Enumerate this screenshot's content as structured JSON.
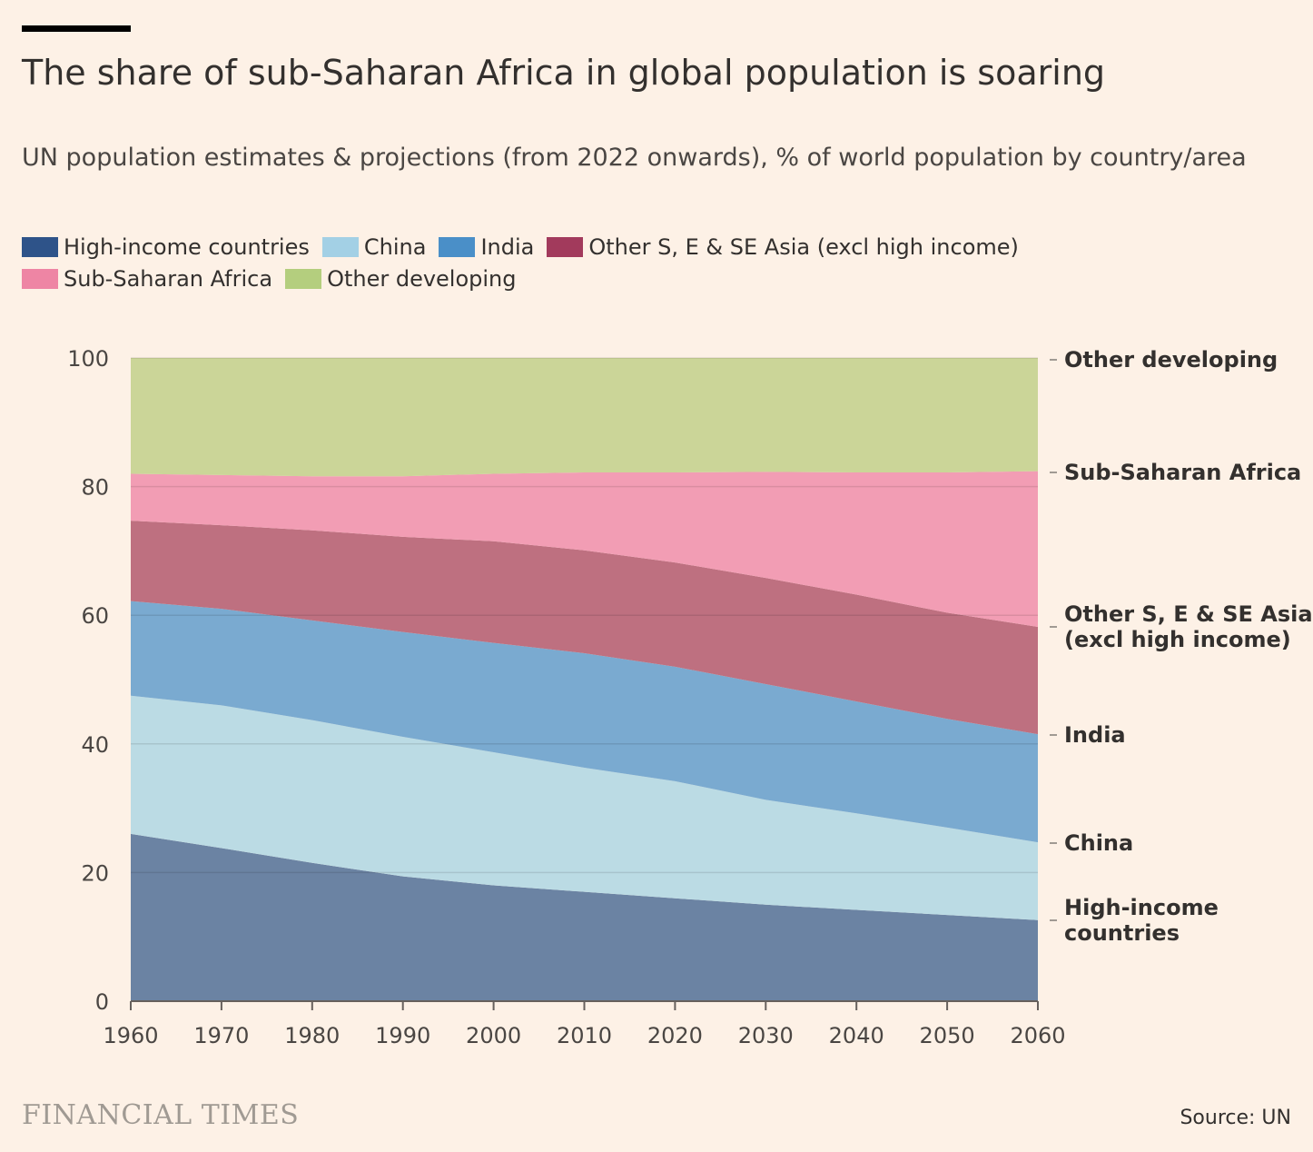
{
  "header": {
    "title": "The share of sub-Saharan Africa in global population is soaring",
    "subtitle": "UN population estimates & projections (from 2022 onwards), % of world population by country/area"
  },
  "legend": {
    "items": [
      {
        "label": "High-income countries",
        "color": "#2e5389"
      },
      {
        "label": "China",
        "color": "#a3d0e5"
      },
      {
        "label": "India",
        "color": "#4a8fc8"
      },
      {
        "label": "Other S, E & SE Asia (excl high income)",
        "color": "#a23a5c"
      },
      {
        "label": "Sub-Saharan Africa",
        "color": "#ee85a4"
      },
      {
        "label": "Other developing",
        "color": "#b4ce7e"
      }
    ]
  },
  "end_labels": [
    {
      "lines": [
        "Other developing"
      ]
    },
    {
      "lines": [
        "Sub-Saharan Africa"
      ]
    },
    {
      "lines": [
        "Other S, E & SE Asia",
        "(excl high income)"
      ]
    },
    {
      "lines": [
        "India"
      ]
    },
    {
      "lines": [
        "China"
      ]
    },
    {
      "lines": [
        "High-income",
        "countries"
      ]
    }
  ],
  "footer": {
    "brand": "FINANCIAL TIMES",
    "source": "Source: UN"
  },
  "chart_data": {
    "type": "area",
    "stacked": true,
    "x": [
      1960,
      1970,
      1980,
      1990,
      2000,
      2010,
      2020,
      2030,
      2040,
      2050,
      2060
    ],
    "x_ticks": [
      "1960",
      "1970",
      "1980",
      "1990",
      "2000",
      "2010",
      "2020",
      "2030",
      "2040",
      "2050",
      "2060"
    ],
    "y_ticks": [
      "0",
      "20",
      "40",
      "60",
      "80",
      "100"
    ],
    "ylim": [
      0,
      100
    ],
    "grid": true,
    "series": [
      {
        "name": "High-income countries",
        "color": "#6b83a3",
        "values": [
          26.0,
          23.8,
          21.5,
          19.4,
          18.0,
          17.0,
          16.0,
          15.0,
          14.2,
          13.4,
          12.6
        ]
      },
      {
        "name": "China",
        "color": "#bbdbe4",
        "values": [
          21.5,
          22.2,
          22.2,
          21.7,
          20.7,
          19.3,
          18.2,
          16.3,
          15.0,
          13.6,
          12.1
        ]
      },
      {
        "name": "India",
        "color": "#7aaad0",
        "values": [
          14.7,
          15.0,
          15.5,
          16.3,
          17.0,
          17.8,
          17.8,
          18.0,
          17.4,
          16.9,
          16.8
        ]
      },
      {
        "name": "Other S, E & SE Asia (excl high income)",
        "color": "#be7080",
        "values": [
          12.5,
          13.0,
          14.0,
          14.8,
          15.8,
          16.0,
          16.2,
          16.5,
          16.6,
          16.5,
          16.7
        ]
      },
      {
        "name": "Sub-Saharan Africa",
        "color": "#f29db4",
        "values": [
          7.3,
          7.8,
          8.4,
          9.4,
          10.5,
          12.1,
          14.0,
          16.5,
          19.0,
          21.8,
          24.2
        ]
      },
      {
        "name": "Other developing",
        "color": "#cbd598",
        "values": [
          18.0,
          18.2,
          18.4,
          18.4,
          18.0,
          17.8,
          17.8,
          17.7,
          17.8,
          17.8,
          17.6
        ]
      }
    ]
  }
}
